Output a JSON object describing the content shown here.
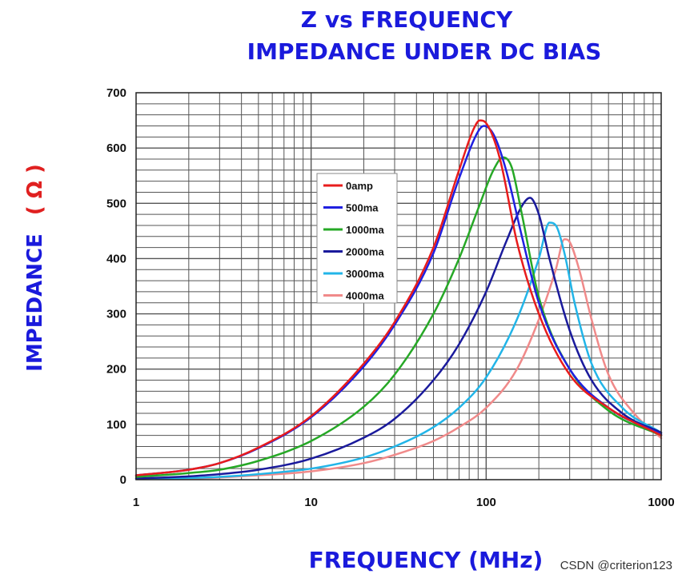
{
  "chart_data": {
    "type": "line",
    "title_line1": "Z vs FREQUENCY",
    "title_line2": "IMPEDANCE UNDER DC BIAS",
    "xlabel": "FREQUENCY (MHz)",
    "ylabel_text": "IMPEDANCE",
    "ylabel_unit": "( Ω )",
    "xscale": "log",
    "xlim": [
      1,
      1000
    ],
    "ylim": [
      0,
      700
    ],
    "x_ticks": [
      1,
      10,
      100,
      1000
    ],
    "x_tick_labels": [
      "1",
      "10",
      "100",
      "1000"
    ],
    "y_ticks": [
      0,
      100,
      200,
      300,
      400,
      500,
      600,
      700
    ],
    "y_tick_labels": [
      "0",
      "100",
      "200",
      "300",
      "400",
      "500",
      "600",
      "700"
    ],
    "grid": true,
    "legend_position": "upper-left-inside",
    "series": [
      {
        "name": "0amp",
        "color": "#e81c1c",
        "width": 2.5,
        "points": [
          [
            1,
            8
          ],
          [
            2,
            18
          ],
          [
            3,
            30
          ],
          [
            5,
            58
          ],
          [
            10,
            115
          ],
          [
            20,
            210
          ],
          [
            30,
            285
          ],
          [
            50,
            420
          ],
          [
            70,
            560
          ],
          [
            85,
            635
          ],
          [
            92,
            650
          ],
          [
            100,
            645
          ],
          [
            120,
            580
          ],
          [
            150,
            430
          ],
          [
            200,
            300
          ],
          [
            300,
            190
          ],
          [
            500,
            130
          ],
          [
            1000,
            80
          ]
        ]
      },
      {
        "name": "500ma",
        "color": "#2020e0",
        "width": 2.5,
        "points": [
          [
            1,
            8
          ],
          [
            2,
            18
          ],
          [
            3,
            30
          ],
          [
            5,
            57
          ],
          [
            10,
            113
          ],
          [
            20,
            205
          ],
          [
            30,
            280
          ],
          [
            50,
            410
          ],
          [
            70,
            545
          ],
          [
            90,
            630
          ],
          [
            97,
            640
          ],
          [
            110,
            625
          ],
          [
            130,
            560
          ],
          [
            160,
            440
          ],
          [
            200,
            320
          ],
          [
            300,
            200
          ],
          [
            500,
            130
          ],
          [
            1000,
            82
          ]
        ]
      },
      {
        "name": "1000ma",
        "color": "#26a826",
        "width": 2.5,
        "points": [
          [
            1,
            5
          ],
          [
            2,
            12
          ],
          [
            3,
            18
          ],
          [
            5,
            34
          ],
          [
            10,
            70
          ],
          [
            20,
            132
          ],
          [
            30,
            190
          ],
          [
            50,
            300
          ],
          [
            70,
            400
          ],
          [
            90,
            490
          ],
          [
            110,
            560
          ],
          [
            125,
            583
          ],
          [
            140,
            565
          ],
          [
            160,
            480
          ],
          [
            200,
            330
          ],
          [
            300,
            200
          ],
          [
            500,
            125
          ],
          [
            1000,
            80
          ]
        ]
      },
      {
        "name": "2000ma",
        "color": "#1a1a9c",
        "width": 2.5,
        "points": [
          [
            1,
            2
          ],
          [
            2,
            6
          ],
          [
            3,
            10
          ],
          [
            5,
            18
          ],
          [
            10,
            38
          ],
          [
            20,
            76
          ],
          [
            30,
            110
          ],
          [
            50,
            180
          ],
          [
            70,
            245
          ],
          [
            100,
            340
          ],
          [
            130,
            430
          ],
          [
            160,
            495
          ],
          [
            178,
            510
          ],
          [
            200,
            480
          ],
          [
            230,
            400
          ],
          [
            300,
            270
          ],
          [
            400,
            180
          ],
          [
            600,
            120
          ],
          [
            1000,
            85
          ]
        ]
      },
      {
        "name": "3000ma",
        "color": "#22b5e8",
        "width": 2.5,
        "points": [
          [
            1,
            1
          ],
          [
            2,
            3
          ],
          [
            3,
            5
          ],
          [
            5,
            10
          ],
          [
            10,
            20
          ],
          [
            20,
            40
          ],
          [
            30,
            60
          ],
          [
            50,
            95
          ],
          [
            70,
            130
          ],
          [
            100,
            185
          ],
          [
            150,
            290
          ],
          [
            200,
            400
          ],
          [
            230,
            465
          ],
          [
            250,
            460
          ],
          [
            280,
            410
          ],
          [
            320,
            320
          ],
          [
            400,
            210
          ],
          [
            600,
            130
          ],
          [
            1000,
            85
          ]
        ]
      },
      {
        "name": "4000ma",
        "color": "#f08a8a",
        "width": 2.5,
        "points": [
          [
            1,
            1
          ],
          [
            2,
            2
          ],
          [
            3,
            4
          ],
          [
            5,
            8
          ],
          [
            10,
            15
          ],
          [
            20,
            30
          ],
          [
            30,
            45
          ],
          [
            50,
            70
          ],
          [
            70,
            95
          ],
          [
            100,
            130
          ],
          [
            150,
            200
          ],
          [
            200,
            290
          ],
          [
            250,
            380
          ],
          [
            280,
            435
          ],
          [
            300,
            430
          ],
          [
            340,
            380
          ],
          [
            400,
            290
          ],
          [
            500,
            190
          ],
          [
            700,
            120
          ],
          [
            1000,
            75
          ]
        ]
      }
    ]
  },
  "watermark": "CSDN @criterion123"
}
